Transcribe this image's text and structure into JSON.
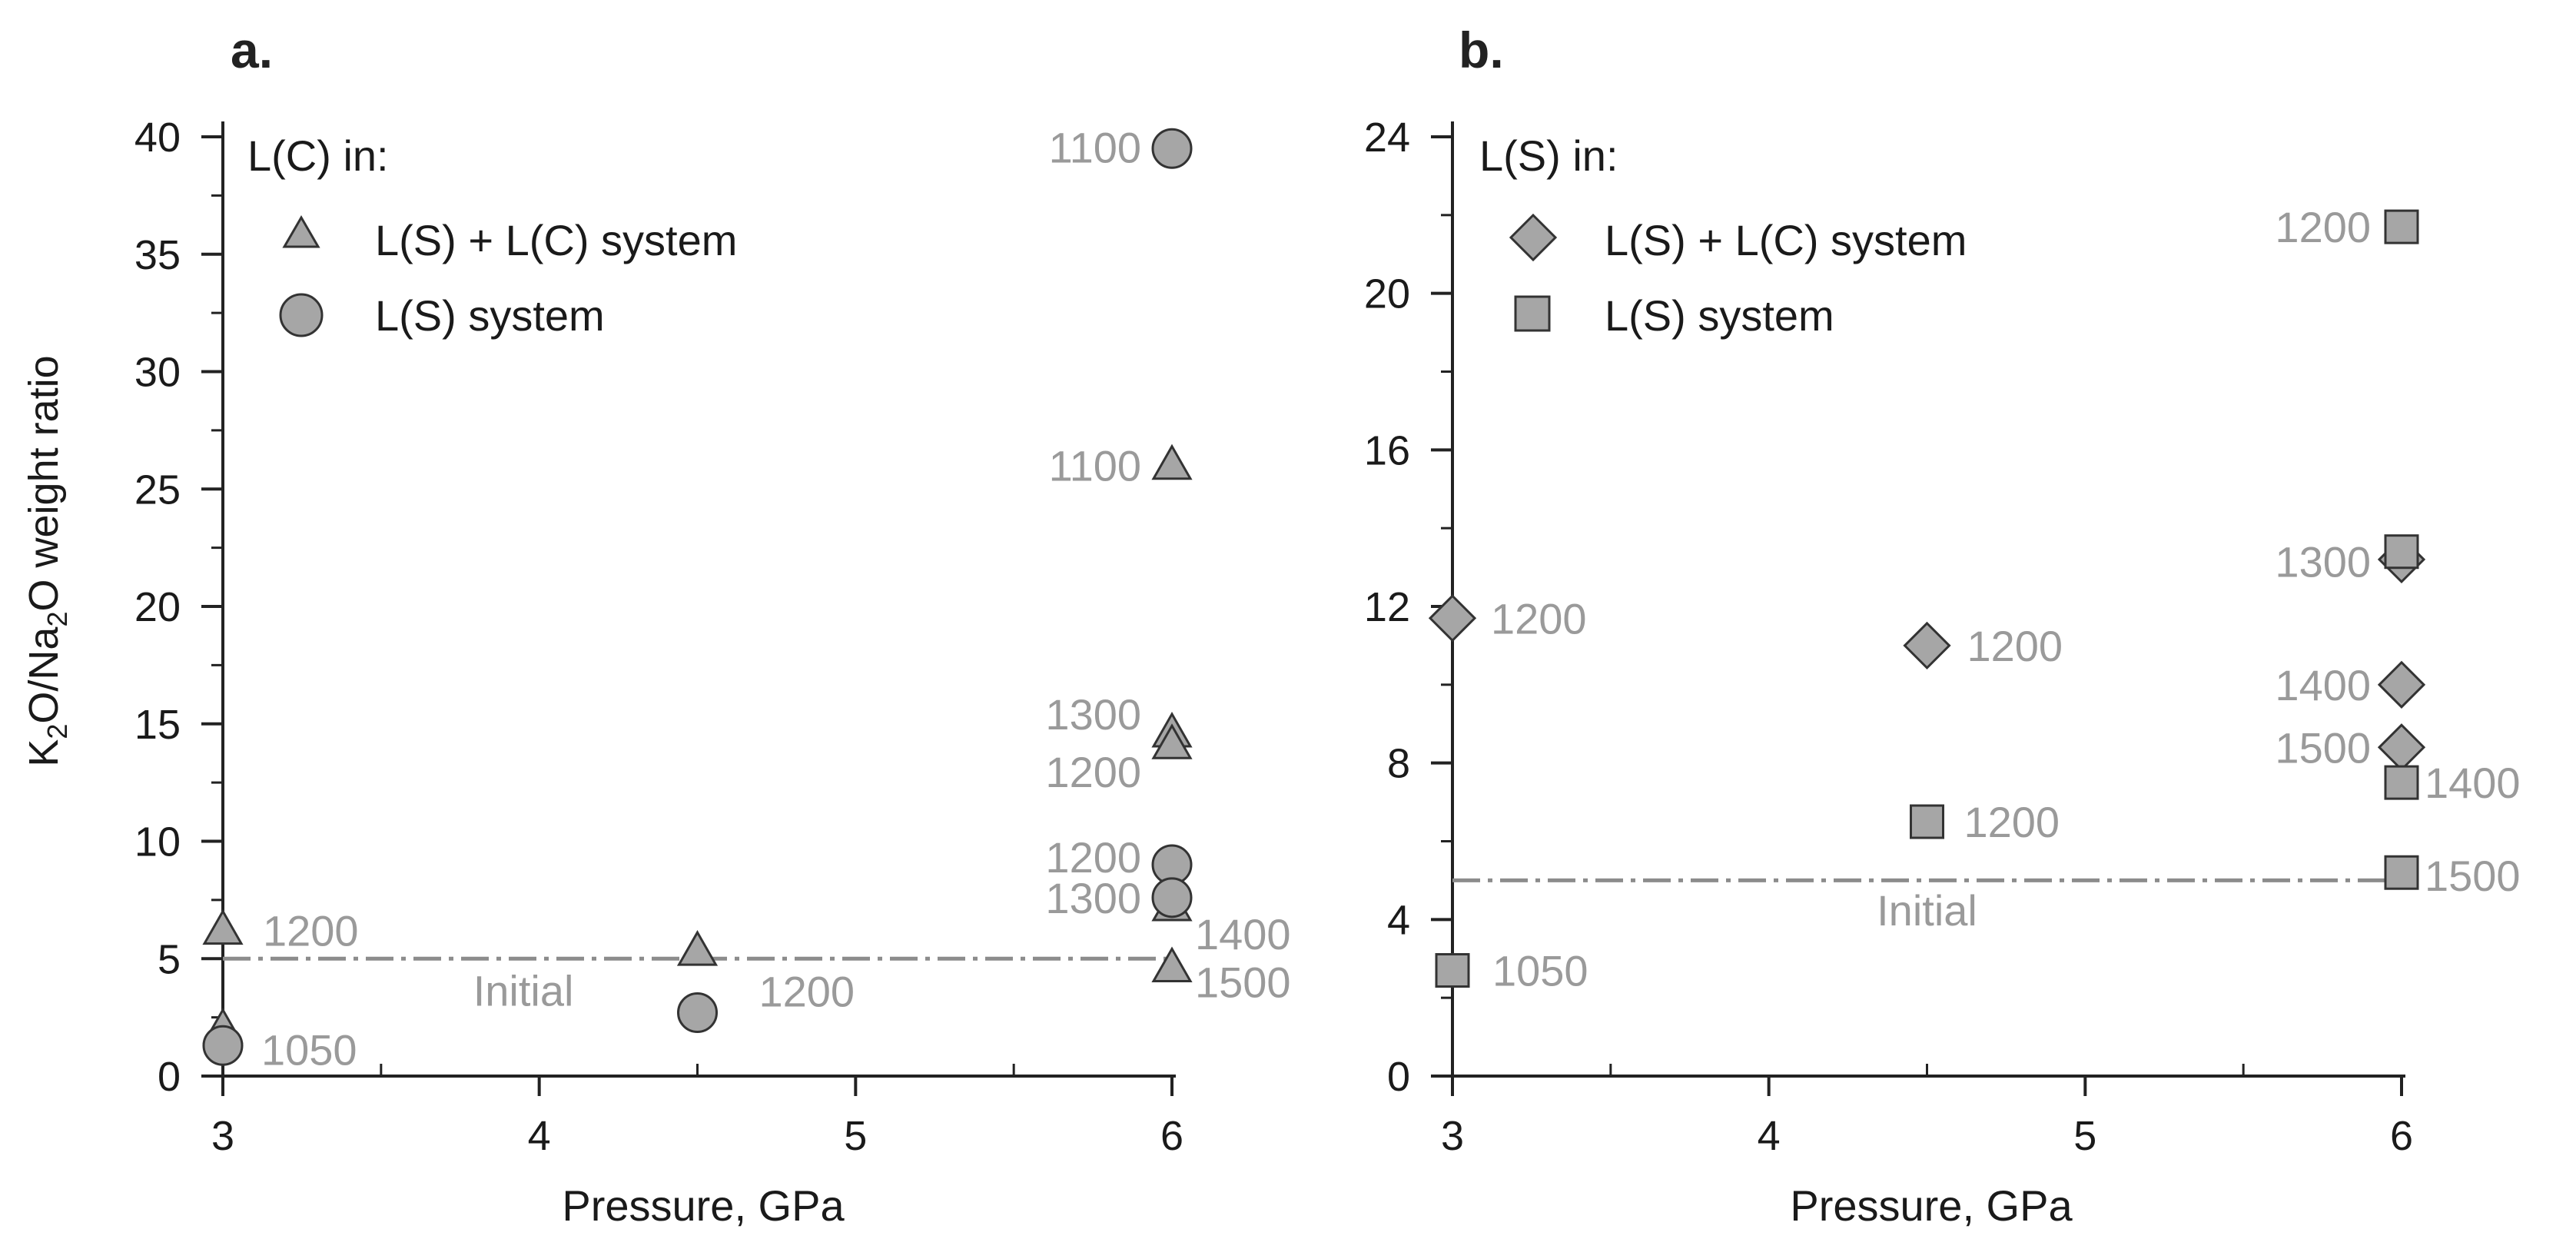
{
  "chart_data": [
    {
      "panel": "a.",
      "type": "scatter",
      "xlabel": "Pressure, GPa",
      "ylabel": {
        "pre": "K",
        "sub1": "2",
        "mid": "O/Na",
        "sub2": "2",
        "post": "O weight ratio"
      },
      "xlim": [
        3,
        6
      ],
      "ylim": [
        0,
        40
      ],
      "xticks": [
        3,
        4,
        5,
        6
      ],
      "yticks": [
        0,
        5,
        10,
        15,
        20,
        25,
        30,
        35,
        40
      ],
      "x_minor_step": 0.5,
      "y_minor_step": 2.5,
      "legend_title": "L(C) in:",
      "initial": {
        "value": 5,
        "label": "Initial",
        "label_x": 3.95,
        "label_y": 3.0
      },
      "series": [
        {
          "name": "L(S) + L(C) system",
          "marker": "triangle",
          "points": [
            {
              "x": 3,
              "y": 6.2,
              "label": "1200"
            },
            {
              "x": 3,
              "y": 2.0,
              "label": ""
            },
            {
              "x": 4.5,
              "y": 5.3,
              "label": ""
            },
            {
              "x": 6,
              "y": 26,
              "label": "1100"
            },
            {
              "x": 6,
              "y": 14.6,
              "label": "1300"
            },
            {
              "x": 6,
              "y": 14.1,
              "label": "1200"
            },
            {
              "x": 6,
              "y": 7.2,
              "label": "1400"
            },
            {
              "x": 6,
              "y": 4.6,
              "label": "1500"
            }
          ]
        },
        {
          "name": "L(S) system",
          "marker": "circle",
          "points": [
            {
              "x": 3,
              "y": 1.3,
              "label": "1050"
            },
            {
              "x": 4.5,
              "y": 2.7,
              "label": "1200"
            },
            {
              "x": 6,
              "y": 39.5,
              "label": "1100"
            },
            {
              "x": 6,
              "y": 9.0,
              "label": "1200"
            },
            {
              "x": 6,
              "y": 7.6,
              "label": "1300"
            }
          ]
        }
      ]
    },
    {
      "panel": "b.",
      "type": "scatter",
      "xlabel": "Pressure, GPa",
      "xlim": [
        3,
        6
      ],
      "ylim": [
        0,
        24
      ],
      "xticks": [
        3,
        4,
        5,
        6
      ],
      "yticks": [
        0,
        4,
        8,
        12,
        16,
        20,
        24
      ],
      "x_minor_step": 0.5,
      "y_minor_step": 2,
      "legend_title": "L(S) in:",
      "initial": {
        "value": 5,
        "label": "Initial",
        "label_x": 4.5,
        "label_y": 3.85
      },
      "series": [
        {
          "name": "L(S) + L(C) system",
          "marker": "diamond",
          "points": [
            {
              "x": 3,
              "y": 11.7,
              "label": "1200"
            },
            {
              "x": 4.5,
              "y": 11.0,
              "label": "1200"
            },
            {
              "x": 6,
              "y": 13.2,
              "label": ""
            },
            {
              "x": 6,
              "y": 10.0,
              "label": "1400"
            },
            {
              "x": 6,
              "y": 8.4,
              "label": "1500"
            }
          ]
        },
        {
          "name": "L(S) system",
          "marker": "square",
          "points": [
            {
              "x": 3,
              "y": 2.7,
              "label": "1050"
            },
            {
              "x": 4.5,
              "y": 6.5,
              "label": "1200"
            },
            {
              "x": 6,
              "y": 21.7,
              "label": "1200"
            },
            {
              "x": 6,
              "y": 13.4,
              "label": "1300"
            },
            {
              "x": 6,
              "y": 7.5,
              "label": "1400"
            },
            {
              "x": 6,
              "y": 5.2,
              "label": "1500"
            }
          ]
        }
      ]
    }
  ]
}
